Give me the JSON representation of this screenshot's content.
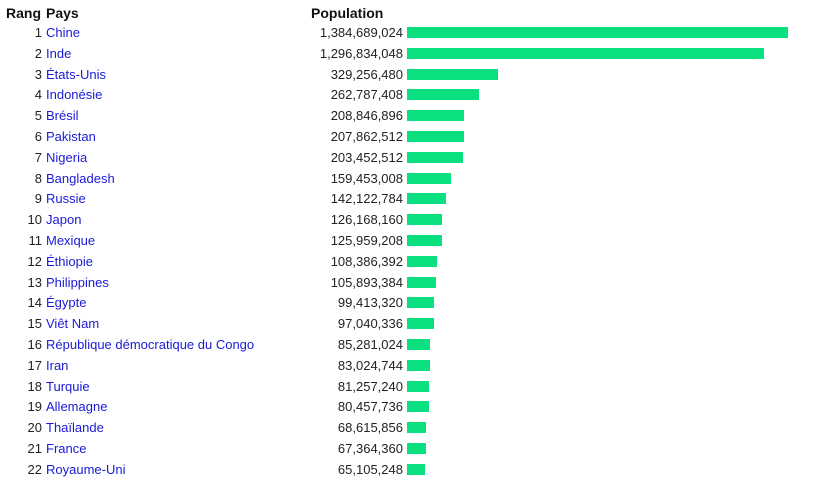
{
  "headers": {
    "rank": "Rang",
    "country": "Pays",
    "population": "Population"
  },
  "bar_color": "#0be081",
  "rows": [
    {
      "rank": "1",
      "country": "Chine",
      "population": "1,384,689,024",
      "value": 1384689024
    },
    {
      "rank": "2",
      "country": "Inde",
      "population": "1,296,834,048",
      "value": 1296834048
    },
    {
      "rank": "3",
      "country": "États-Unis",
      "population": "329,256,480",
      "value": 329256480
    },
    {
      "rank": "4",
      "country": "Indonésie",
      "population": "262,787,408",
      "value": 262787408
    },
    {
      "rank": "5",
      "country": "Brésil",
      "population": "208,846,896",
      "value": 208846896
    },
    {
      "rank": "6",
      "country": "Pakistan",
      "population": "207,862,512",
      "value": 207862512
    },
    {
      "rank": "7",
      "country": "Nigeria",
      "population": "203,452,512",
      "value": 203452512
    },
    {
      "rank": "8",
      "country": "Bangladesh",
      "population": "159,453,008",
      "value": 159453008
    },
    {
      "rank": "9",
      "country": "Russie",
      "population": "142,122,784",
      "value": 142122784
    },
    {
      "rank": "10",
      "country": "Japon",
      "population": "126,168,160",
      "value": 126168160
    },
    {
      "rank": "11",
      "country": "Mexique",
      "population": "125,959,208",
      "value": 125959208
    },
    {
      "rank": "12",
      "country": "Éthiopie",
      "population": "108,386,392",
      "value": 108386392
    },
    {
      "rank": "13",
      "country": "Philippines",
      "population": "105,893,384",
      "value": 105893384
    },
    {
      "rank": "14",
      "country": "Égypte",
      "population": "99,413,320",
      "value": 99413320
    },
    {
      "rank": "15",
      "country": "Viêt Nam",
      "population": "97,040,336",
      "value": 97040336
    },
    {
      "rank": "16",
      "country": "République démocratique du Congo",
      "population": "85,281,024",
      "value": 85281024
    },
    {
      "rank": "17",
      "country": "Iran",
      "population": "83,024,744",
      "value": 83024744
    },
    {
      "rank": "18",
      "country": "Turquie",
      "population": "81,257,240",
      "value": 81257240
    },
    {
      "rank": "19",
      "country": "Allemagne",
      "population": "80,457,736",
      "value": 80457736
    },
    {
      "rank": "20",
      "country": "Thaïlande",
      "population": "68,615,856",
      "value": 68615856
    },
    {
      "rank": "21",
      "country": "France",
      "population": "67,364,360",
      "value": 67364360
    },
    {
      "rank": "22",
      "country": "Royaume-Uni",
      "population": "65,105,248",
      "value": 65105248
    }
  ]
}
